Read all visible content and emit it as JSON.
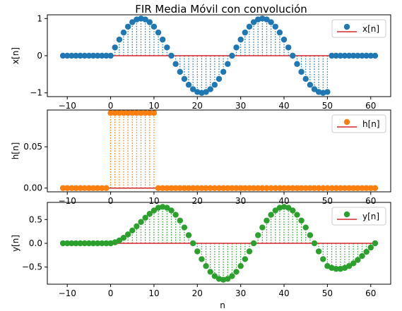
{
  "title": "FIR Media Móvil con convolución",
  "xlabel": "n",
  "chart_data": [
    {
      "type": "stem",
      "ylabel": "x[n]",
      "legend": "x[n]",
      "legend_position": "upper-right",
      "color": "#1f77b4",
      "baseline_color": "#d62728",
      "x_range": [
        -11,
        61
      ],
      "xlim": [
        -14.6,
        64.6
      ],
      "ylim": [
        -1.1,
        1.1
      ],
      "xticks": [
        -10,
        0,
        10,
        20,
        30,
        40,
        50,
        60
      ],
      "yticks": [
        -1,
        0,
        1
      ],
      "ytick_labels": [
        "−1",
        "0",
        "1"
      ],
      "formula": "x[n] = sin(2π n / 28) for 0 ≤ n ≤ 50, else 0"
    },
    {
      "type": "stem",
      "ylabel": "h[n]",
      "legend": "h[n]",
      "legend_position": "upper-right",
      "color": "#ff7f0e",
      "baseline_color": "#d62728",
      "x_range": [
        -11,
        61
      ],
      "xlim": [
        -14.6,
        64.6
      ],
      "ylim": [
        -0.0045,
        0.0945
      ],
      "xticks": [
        -10,
        0,
        10,
        20,
        30,
        40,
        50,
        60
      ],
      "yticks": [
        0,
        0.05
      ],
      "ytick_labels": [
        "0.00",
        "0.05"
      ],
      "formula": "h[n] = 0.0909 for 0 ≤ n ≤ 10, else 0"
    },
    {
      "type": "stem",
      "ylabel": "y[n]",
      "legend": "y[n]",
      "legend_position": "upper-right",
      "color": "#2ca02c",
      "baseline_color": "#d62728",
      "x_range": [
        -11,
        61
      ],
      "xlim": [
        -14.6,
        64.6
      ],
      "ylim": [
        -0.86,
        0.86
      ],
      "xticks": [
        -10,
        0,
        10,
        20,
        30,
        40,
        50,
        60
      ],
      "yticks": [
        -0.5,
        0,
        0.5
      ],
      "ytick_labels": [
        "−0.5",
        "0.0",
        "0.5"
      ],
      "formula": "y[n] = (x * h)[n] (11-point moving average of x[n])"
    }
  ]
}
